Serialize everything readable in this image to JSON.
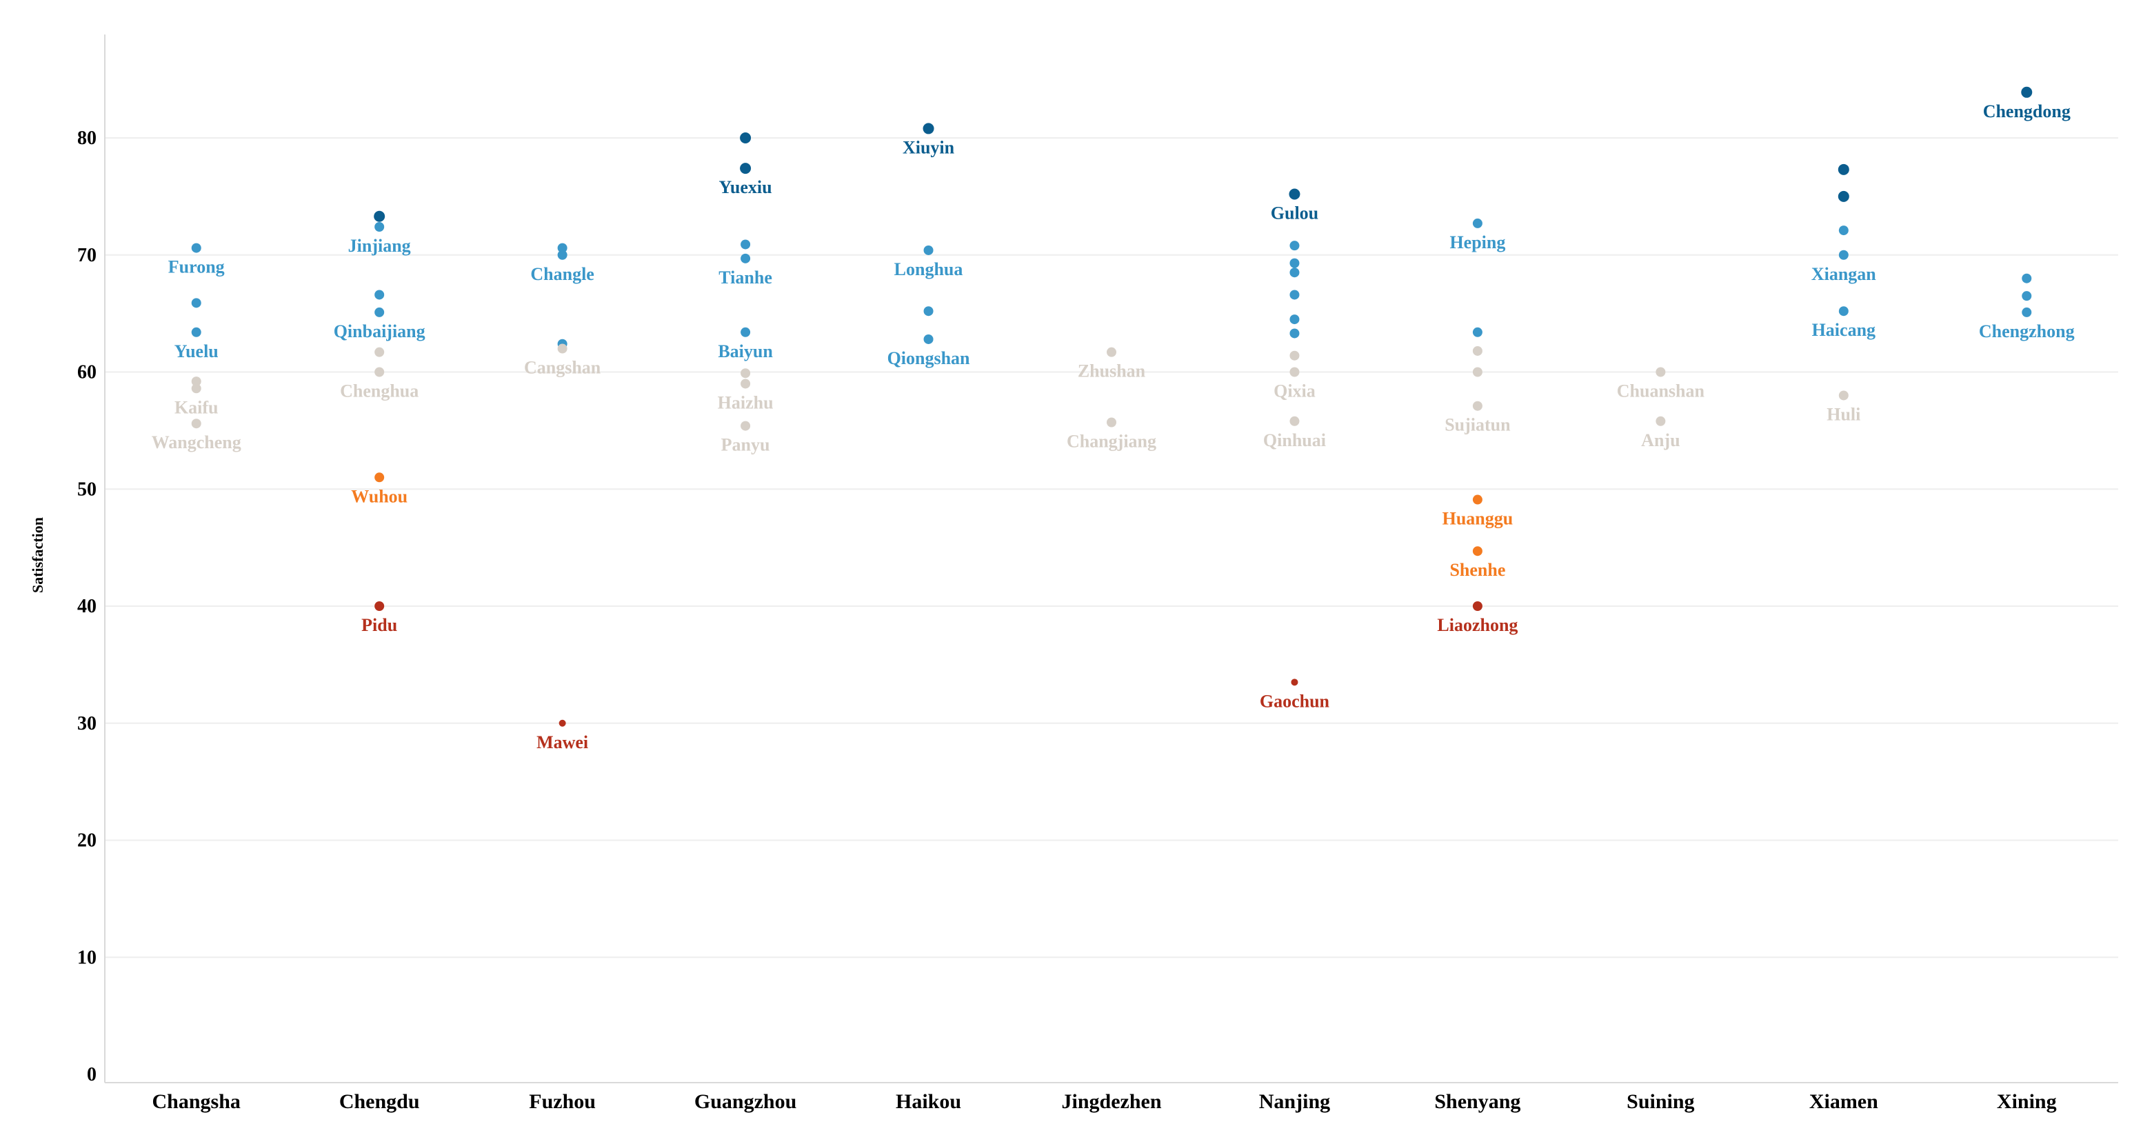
{
  "chart_data": {
    "type": "scatter",
    "ylabel": "Satisfaction",
    "ylim": [
      0,
      85
    ],
    "yticks": [
      0,
      10,
      20,
      30,
      40,
      50,
      60,
      70,
      80
    ],
    "grid": "horizontal",
    "categories": [
      "Changsha",
      "Chengdu",
      "Fuzhou",
      "Guangzhou",
      "Haikou",
      "Jingdezhen",
      "Nanjing",
      "Shenyang",
      "Suining",
      "Xiamen",
      "Xining"
    ],
    "colors": {
      "dark_blue": "#0b5d8e",
      "blue": "#3a97c9",
      "gray": "#d6cfc7",
      "orange": "#f47b20",
      "red": "#b5301c"
    },
    "points": [
      {
        "x": "Changsha",
        "y": 70.6,
        "color": "blue",
        "label": "Furong"
      },
      {
        "x": "Changsha",
        "y": 65.9,
        "color": "blue"
      },
      {
        "x": "Changsha",
        "y": 63.4,
        "color": "blue",
        "label": "Yuelu"
      },
      {
        "x": "Changsha",
        "y": 59.2,
        "color": "gray"
      },
      {
        "x": "Changsha",
        "y": 58.6,
        "color": "gray",
        "label": "Kaifu"
      },
      {
        "x": "Changsha",
        "y": 55.6,
        "color": "gray",
        "label": "Wangcheng"
      },
      {
        "x": "Chengdu",
        "y": 73.3,
        "color": "dark_blue"
      },
      {
        "x": "Chengdu",
        "y": 72.4,
        "color": "blue",
        "label": "Jinjiang"
      },
      {
        "x": "Chengdu",
        "y": 66.6,
        "color": "blue"
      },
      {
        "x": "Chengdu",
        "y": 65.1,
        "color": "blue",
        "label": "Qinbaijiang"
      },
      {
        "x": "Chengdu",
        "y": 61.7,
        "color": "gray"
      },
      {
        "x": "Chengdu",
        "y": 60.0,
        "color": "gray",
        "label": "Chenghua"
      },
      {
        "x": "Chengdu",
        "y": 51.0,
        "color": "orange",
        "label": "Wuhou"
      },
      {
        "x": "Chengdu",
        "y": 40.0,
        "color": "red",
        "label": "Pidu"
      },
      {
        "x": "Fuzhou",
        "y": 70.6,
        "color": "blue"
      },
      {
        "x": "Fuzhou",
        "y": 70.0,
        "color": "blue",
        "label": "Changle"
      },
      {
        "x": "Fuzhou",
        "y": 62.4,
        "color": "blue"
      },
      {
        "x": "Fuzhou",
        "y": 62.0,
        "color": "gray",
        "label": "Cangshan"
      },
      {
        "x": "Fuzhou",
        "y": 30.0,
        "color": "red",
        "label": "Mawei"
      },
      {
        "x": "Guangzhou",
        "y": 80.0,
        "color": "dark_blue"
      },
      {
        "x": "Guangzhou",
        "y": 77.4,
        "color": "dark_blue",
        "label": "Yuexiu"
      },
      {
        "x": "Guangzhou",
        "y": 70.9,
        "color": "blue"
      },
      {
        "x": "Guangzhou",
        "y": 69.7,
        "color": "blue",
        "label": "Tianhe"
      },
      {
        "x": "Guangzhou",
        "y": 63.4,
        "color": "blue",
        "label": "Baiyun"
      },
      {
        "x": "Guangzhou",
        "y": 59.9,
        "color": "gray"
      },
      {
        "x": "Guangzhou",
        "y": 59.0,
        "color": "gray",
        "label": "Haizhu"
      },
      {
        "x": "Guangzhou",
        "y": 55.4,
        "color": "gray",
        "label": "Panyu"
      },
      {
        "x": "Haikou",
        "y": 80.8,
        "color": "dark_blue",
        "label": "Xiuyin"
      },
      {
        "x": "Haikou",
        "y": 70.4,
        "color": "blue",
        "label": "Longhua"
      },
      {
        "x": "Haikou",
        "y": 65.2,
        "color": "blue"
      },
      {
        "x": "Haikou",
        "y": 62.8,
        "color": "blue",
        "label": "Qiongshan"
      },
      {
        "x": "Jingdezhen",
        "y": 61.7,
        "color": "gray",
        "label": "Zhushan"
      },
      {
        "x": "Jingdezhen",
        "y": 55.7,
        "color": "gray",
        "label": "Changjiang"
      },
      {
        "x": "Nanjing",
        "y": 75.2,
        "color": "dark_blue",
        "label": "Gulou"
      },
      {
        "x": "Nanjing",
        "y": 70.8,
        "color": "blue"
      },
      {
        "x": "Nanjing",
        "y": 69.3,
        "color": "blue"
      },
      {
        "x": "Nanjing",
        "y": 68.5,
        "color": "blue"
      },
      {
        "x": "Nanjing",
        "y": 66.6,
        "color": "blue"
      },
      {
        "x": "Nanjing",
        "y": 64.5,
        "color": "blue"
      },
      {
        "x": "Nanjing",
        "y": 63.3,
        "color": "blue"
      },
      {
        "x": "Nanjing",
        "y": 61.4,
        "color": "gray"
      },
      {
        "x": "Nanjing",
        "y": 60.0,
        "color": "gray",
        "label": "Qixia"
      },
      {
        "x": "Nanjing",
        "y": 55.8,
        "color": "gray",
        "label": "Qinhuai"
      },
      {
        "x": "Nanjing",
        "y": 33.5,
        "color": "red",
        "label": "Gaochun"
      },
      {
        "x": "Shenyang",
        "y": 72.7,
        "color": "blue",
        "label": "Heping"
      },
      {
        "x": "Shenyang",
        "y": 63.4,
        "color": "blue"
      },
      {
        "x": "Shenyang",
        "y": 61.8,
        "color": "gray"
      },
      {
        "x": "Shenyang",
        "y": 60.0,
        "color": "gray"
      },
      {
        "x": "Shenyang",
        "y": 57.1,
        "color": "gray",
        "label": "Sujiatun"
      },
      {
        "x": "Shenyang",
        "y": 49.1,
        "color": "orange",
        "label": "Huanggu"
      },
      {
        "x": "Shenyang",
        "y": 44.7,
        "color": "orange",
        "label": "Shenhe"
      },
      {
        "x": "Shenyang",
        "y": 40.0,
        "color": "red",
        "label": "Liaozhong"
      },
      {
        "x": "Suining",
        "y": 60.0,
        "color": "gray",
        "label": "Chuanshan"
      },
      {
        "x": "Suining",
        "y": 55.8,
        "color": "gray",
        "label": "Anju"
      },
      {
        "x": "Xiamen",
        "y": 77.3,
        "color": "dark_blue"
      },
      {
        "x": "Xiamen",
        "y": 75.0,
        "color": "dark_blue"
      },
      {
        "x": "Xiamen",
        "y": 72.1,
        "color": "blue"
      },
      {
        "x": "Xiamen",
        "y": 70.0,
        "color": "blue",
        "label": "Xiangan"
      },
      {
        "x": "Xiamen",
        "y": 65.2,
        "color": "blue",
        "label": "Haicang"
      },
      {
        "x": "Xiamen",
        "y": 58.0,
        "color": "gray",
        "label": "Huli"
      },
      {
        "x": "Xining",
        "y": 83.9,
        "color": "dark_blue",
        "label": "Chengdong"
      },
      {
        "x": "Xining",
        "y": 68.0,
        "color": "blue"
      },
      {
        "x": "Xining",
        "y": 66.5,
        "color": "blue"
      },
      {
        "x": "Xining",
        "y": 65.1,
        "color": "blue",
        "label": "Chengzhong"
      }
    ]
  }
}
